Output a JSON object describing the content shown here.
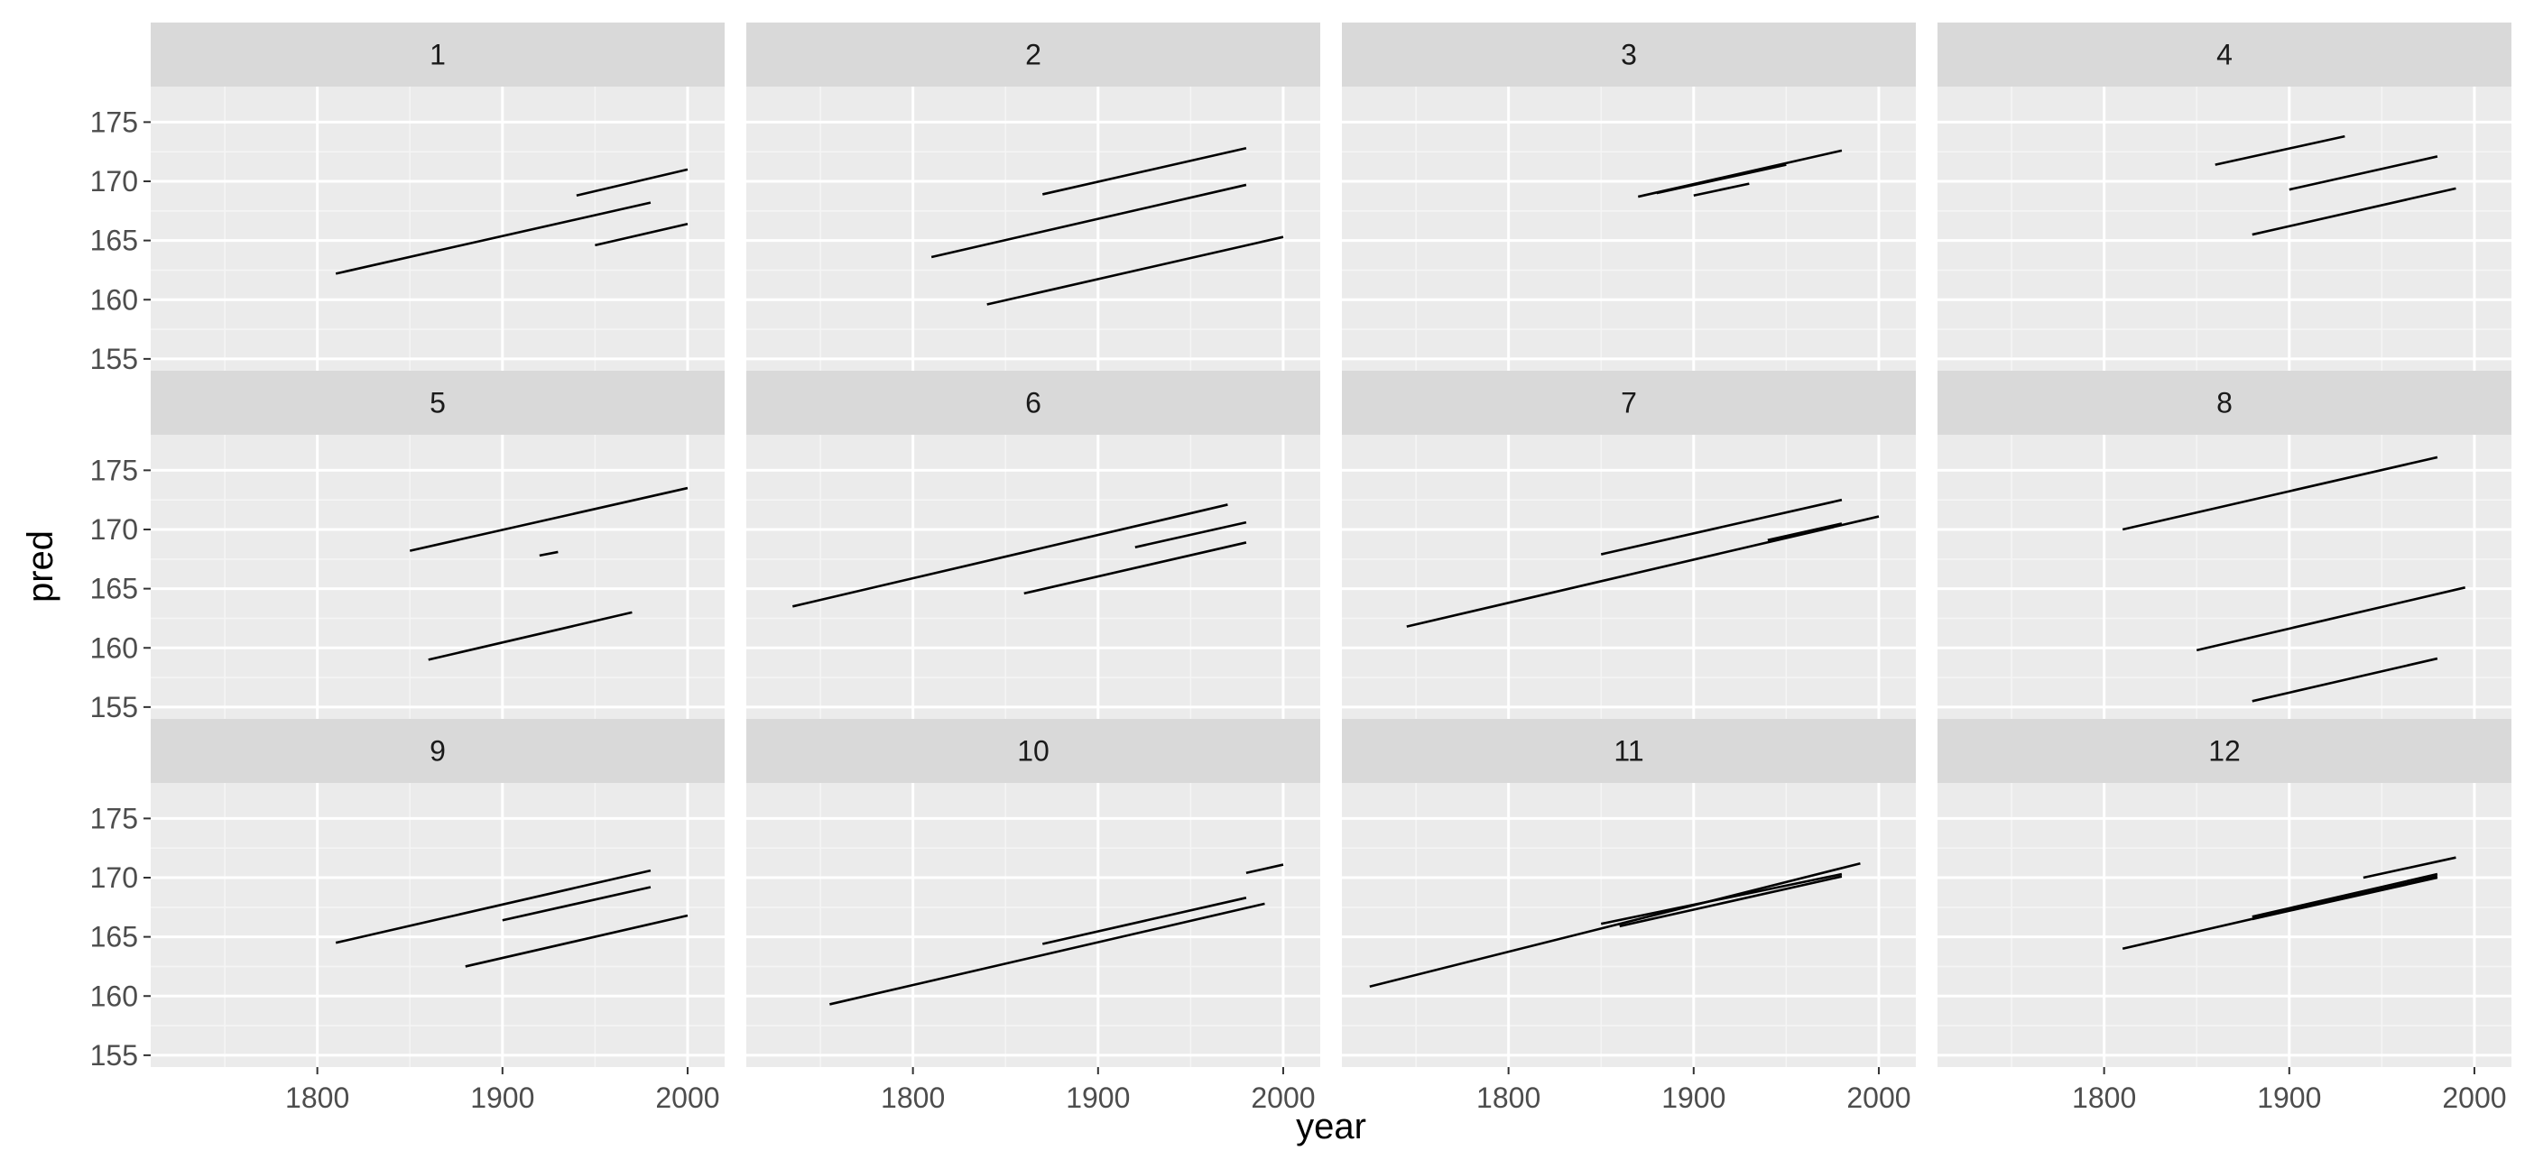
{
  "colors": {
    "panel_background": "#ebebeb",
    "strip_background": "#d9d9d9",
    "grid_major": "#ffffff",
    "grid_minor": "#f5f5f5",
    "line": "#000000",
    "tick_text": "#4d4d4d",
    "strip_text": "#1a1a1a"
  },
  "chart_data": {
    "type": "line",
    "facet_layout": "3 rows x 4 columns, shared axes",
    "xlabel": "year",
    "ylabel": "pred",
    "xlim": [
      1710,
      2020
    ],
    "ylim": [
      154,
      178
    ],
    "x_breaks": [
      1800,
      1900,
      2000
    ],
    "x_minor_breaks": [
      1750,
      1850,
      1950
    ],
    "y_breaks": [
      155,
      160,
      165,
      170,
      175
    ],
    "y_minor_breaks": [
      157.5,
      162.5,
      167.5,
      172.5
    ],
    "grid": true,
    "legend": "none",
    "facets": [
      {
        "label": "1",
        "segments": [
          {
            "x": [
              1810,
              1980
            ],
            "y": [
              162.2,
              168.2
            ]
          },
          {
            "x": [
              1940,
              2000
            ],
            "y": [
              168.8,
              171.0
            ]
          },
          {
            "x": [
              1950,
              2000
            ],
            "y": [
              164.6,
              166.4
            ]
          }
        ]
      },
      {
        "label": "2",
        "segments": [
          {
            "x": [
              1810,
              1980
            ],
            "y": [
              163.6,
              169.7
            ]
          },
          {
            "x": [
              1870,
              1980
            ],
            "y": [
              168.9,
              172.8
            ]
          },
          {
            "x": [
              1840,
              2000
            ],
            "y": [
              159.6,
              165.3
            ]
          }
        ]
      },
      {
        "label": "3",
        "segments": [
          {
            "x": [
              1870,
              1980
            ],
            "y": [
              168.7,
              172.6
            ]
          },
          {
            "x": [
              1880,
              1950
            ],
            "y": [
              169.0,
              171.4
            ]
          },
          {
            "x": [
              1900,
              1930
            ],
            "y": [
              168.8,
              169.8
            ]
          }
        ]
      },
      {
        "label": "4",
        "segments": [
          {
            "x": [
              1860,
              1930
            ],
            "y": [
              171.4,
              173.8
            ]
          },
          {
            "x": [
              1900,
              1980
            ],
            "y": [
              169.3,
              172.1
            ]
          },
          {
            "x": [
              1880,
              1990
            ],
            "y": [
              165.5,
              169.4
            ]
          }
        ]
      },
      {
        "label": "5",
        "segments": [
          {
            "x": [
              1850,
              2000
            ],
            "y": [
              168.2,
              173.5
            ]
          },
          {
            "x": [
              1920,
              1930
            ],
            "y": [
              167.8,
              168.1
            ]
          },
          {
            "x": [
              1860,
              1970
            ],
            "y": [
              159.0,
              163.0
            ]
          }
        ]
      },
      {
        "label": "6",
        "segments": [
          {
            "x": [
              1735,
              1970
            ],
            "y": [
              163.5,
              172.1
            ]
          },
          {
            "x": [
              1920,
              1980
            ],
            "y": [
              168.5,
              170.6
            ]
          },
          {
            "x": [
              1860,
              1980
            ],
            "y": [
              164.6,
              168.9
            ]
          }
        ]
      },
      {
        "label": "7",
        "segments": [
          {
            "x": [
              1745,
              2000
            ],
            "y": [
              161.8,
              171.1
            ]
          },
          {
            "x": [
              1850,
              1980
            ],
            "y": [
              167.9,
              172.5
            ]
          },
          {
            "x": [
              1940,
              1980
            ],
            "y": [
              169.1,
              170.5
            ]
          }
        ]
      },
      {
        "label": "8",
        "segments": [
          {
            "x": [
              1810,
              1980
            ],
            "y": [
              170.0,
              176.1
            ]
          },
          {
            "x": [
              1850,
              1995
            ],
            "y": [
              159.8,
              165.1
            ]
          },
          {
            "x": [
              1880,
              1980
            ],
            "y": [
              155.5,
              159.1
            ]
          }
        ]
      },
      {
        "label": "9",
        "segments": [
          {
            "x": [
              1810,
              1980
            ],
            "y": [
              164.5,
              170.6
            ]
          },
          {
            "x": [
              1900,
              1980
            ],
            "y": [
              166.4,
              169.2
            ]
          },
          {
            "x": [
              1880,
              2000
            ],
            "y": [
              162.5,
              166.8
            ]
          }
        ]
      },
      {
        "label": "10",
        "segments": [
          {
            "x": [
              1755,
              1990
            ],
            "y": [
              159.3,
              167.8
            ]
          },
          {
            "x": [
              1870,
              1980
            ],
            "y": [
              164.4,
              168.3
            ]
          },
          {
            "x": [
              1980,
              2000
            ],
            "y": [
              170.4,
              171.1
            ]
          }
        ]
      },
      {
        "label": "11",
        "segments": [
          {
            "x": [
              1725,
              1990
            ],
            "y": [
              160.8,
              171.2
            ]
          },
          {
            "x": [
              1850,
              1980
            ],
            "y": [
              166.1,
              170.3
            ]
          },
          {
            "x": [
              1860,
              1980
            ],
            "y": [
              165.9,
              170.1
            ]
          }
        ]
      },
      {
        "label": "12",
        "segments": [
          {
            "x": [
              1810,
              1980
            ],
            "y": [
              164.0,
              170.1
            ]
          },
          {
            "x": [
              1880,
              1980
            ],
            "y": [
              166.7,
              170.3
            ]
          },
          {
            "x": [
              1940,
              1990
            ],
            "y": [
              170.0,
              171.7
            ]
          },
          {
            "x": [
              1880,
              1980
            ],
            "y": [
              166.5,
              170.0
            ]
          }
        ]
      }
    ]
  }
}
